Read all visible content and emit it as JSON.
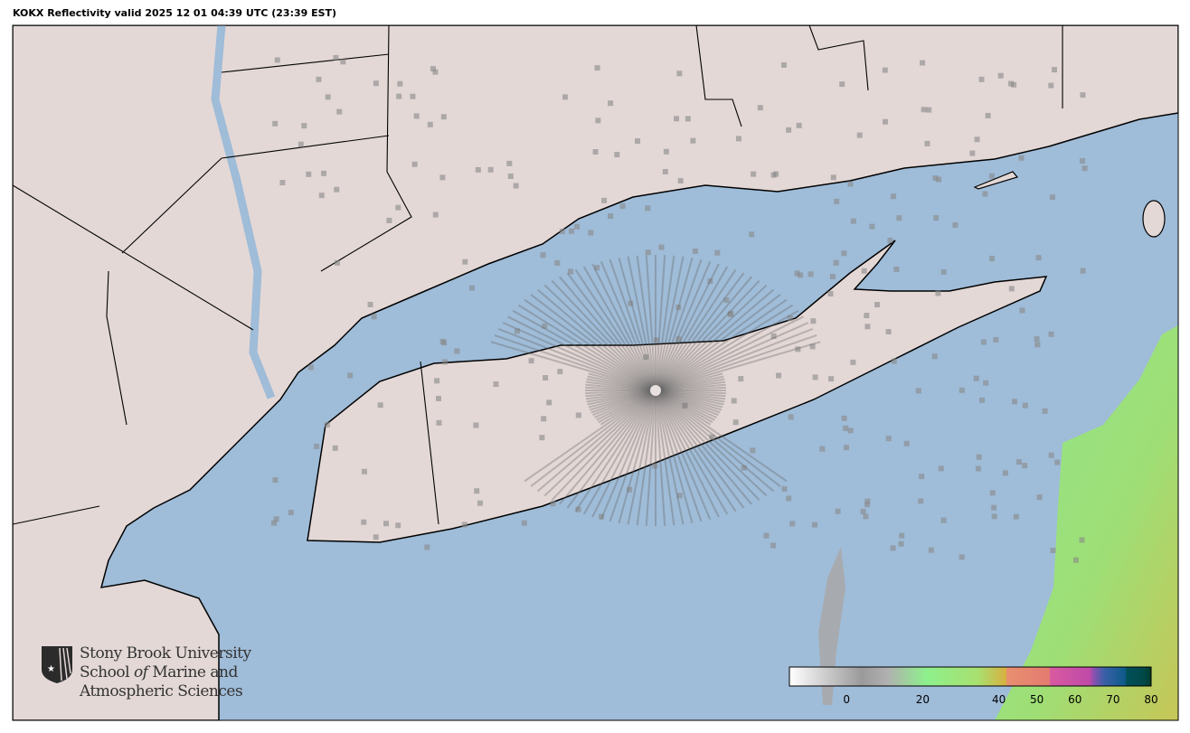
{
  "title": "KOKX Reflectivity valid 2025 12 01 04:39 UTC (23:39 EST)",
  "radar_site": "KOKX",
  "colors": {
    "water": "#9fbcd8",
    "land": "#e3d8d6",
    "border": "#000000",
    "echo_light": "#7fe88a",
    "echo_strong": "#d4b640"
  },
  "colorbar": {
    "range": [
      -15,
      80
    ],
    "ticks": [
      "0",
      "20",
      "40",
      "50",
      "60",
      "70",
      "80"
    ],
    "tick_values": [
      0,
      20,
      40,
      50,
      60,
      70,
      80
    ]
  },
  "logo": {
    "line1": "Stony Brook University",
    "line2_a": "School ",
    "line2_b": "of",
    "line2_c": " Marine and",
    "line3": "Atmospheric Sciences"
  }
}
